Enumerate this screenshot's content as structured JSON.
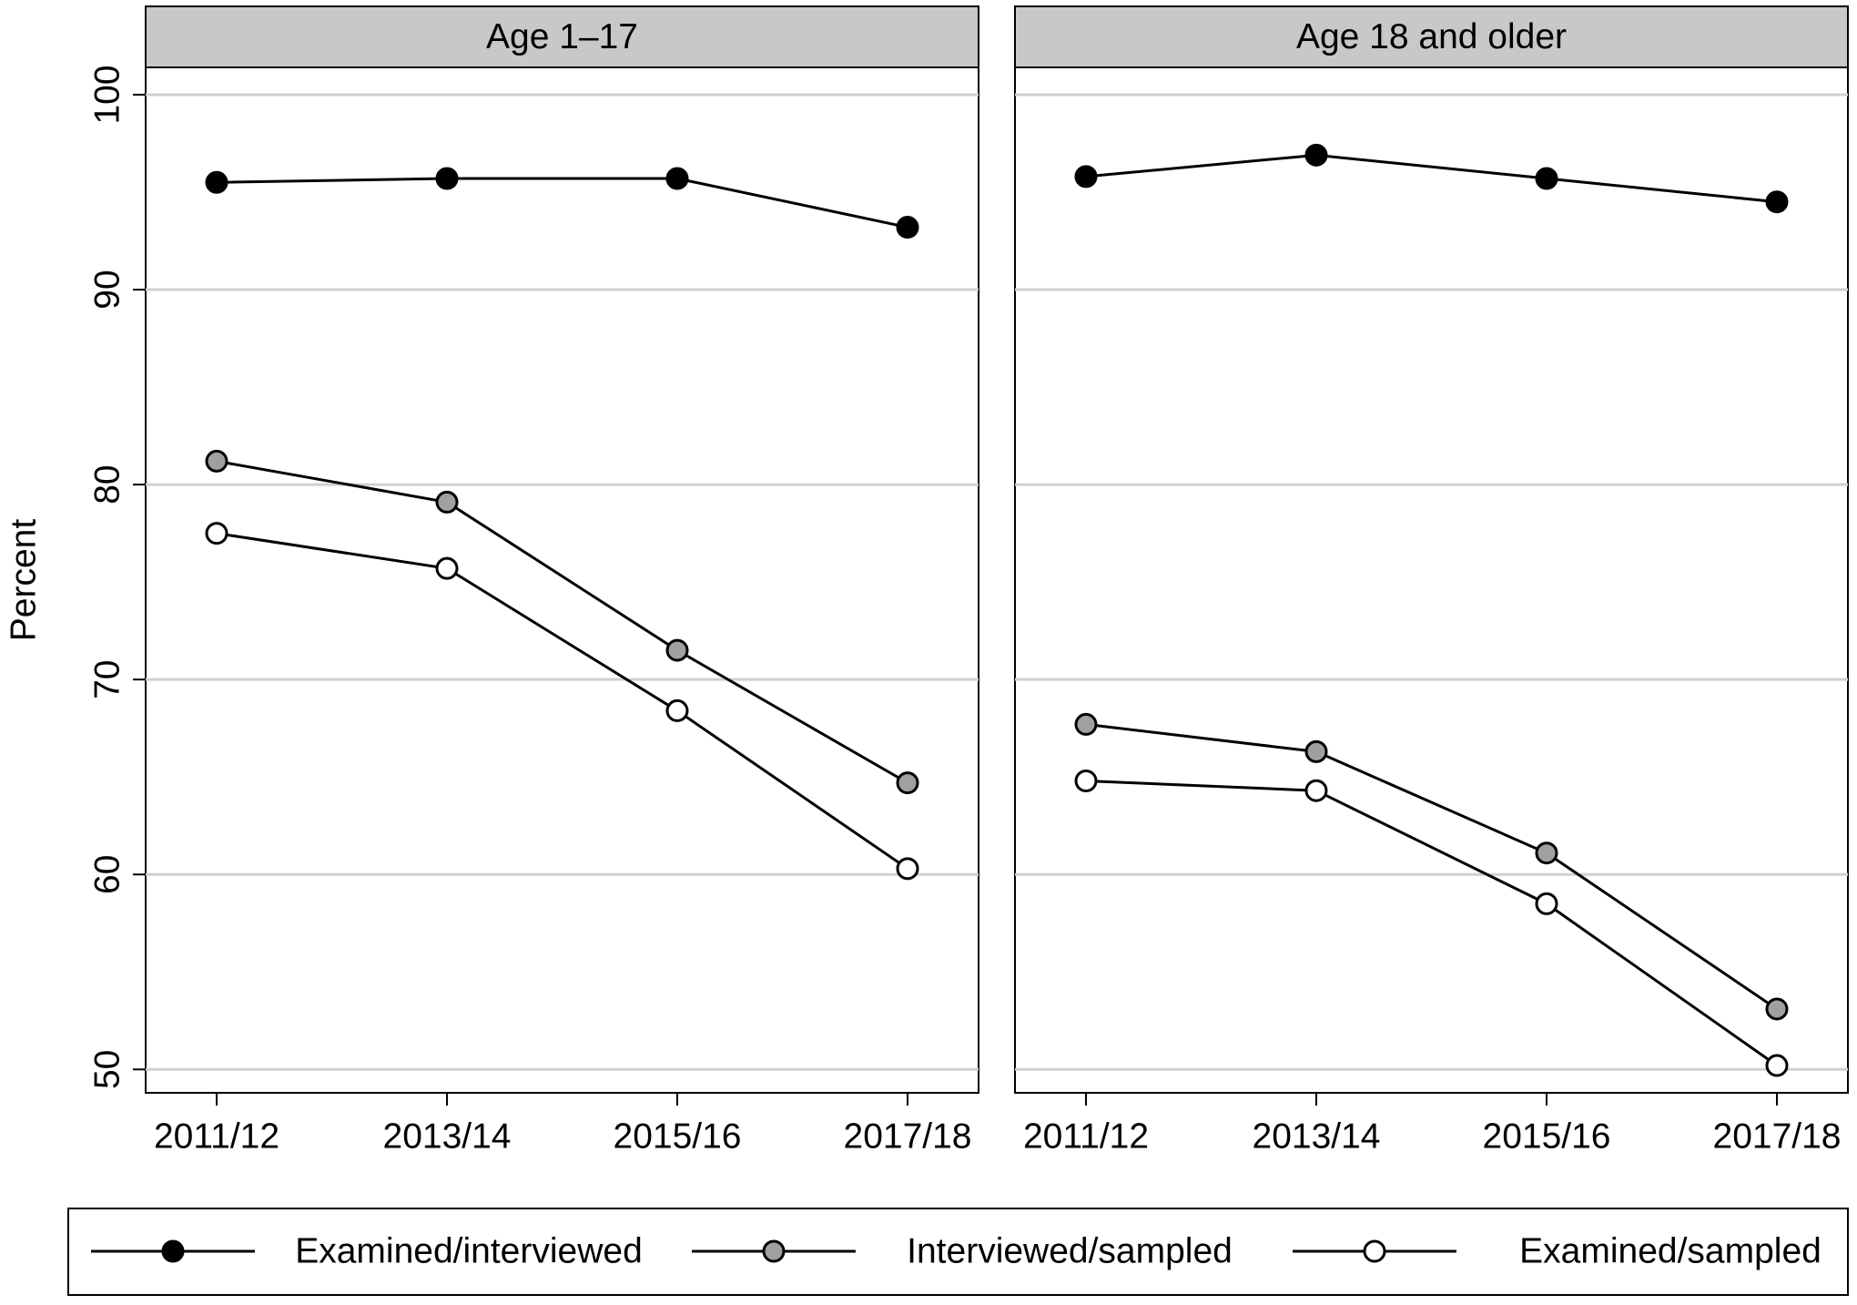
{
  "chart_data": [
    {
      "type": "line",
      "title": "Age 1–17",
      "y_label": "Percent",
      "categories": [
        "2011/12",
        "2013/14",
        "2015/16",
        "2017/18"
      ],
      "ylim": [
        48.8,
        101.4
      ],
      "yticks": [
        50,
        60,
        70,
        80,
        90,
        100
      ],
      "grid": true,
      "series": [
        {
          "name": "Examined/interviewed",
          "color": "#000000",
          "values": [
            95.5,
            95.7,
            95.7,
            93.2
          ]
        },
        {
          "name": "Interviewed/sampled",
          "color": "#a0a0a0",
          "values": [
            81.2,
            79.1,
            71.5,
            64.7
          ]
        },
        {
          "name": "Examined/sampled",
          "color": "#ffffff",
          "values": [
            77.5,
            75.7,
            68.4,
            60.3
          ]
        }
      ]
    },
    {
      "type": "line",
      "title": "Age 18 and older",
      "categories": [
        "2011/12",
        "2013/14",
        "2015/16",
        "2017/18"
      ],
      "ylim": [
        48.8,
        101.4
      ],
      "yticks": [
        50,
        60,
        70,
        80,
        90,
        100
      ],
      "grid": true,
      "series": [
        {
          "name": "Examined/interviewed",
          "color": "#000000",
          "values": [
            95.8,
            96.9,
            95.7,
            94.5
          ]
        },
        {
          "name": "Interviewed/sampled",
          "color": "#a0a0a0",
          "values": [
            67.7,
            66.3,
            61.1,
            53.1
          ]
        },
        {
          "name": "Examined/sampled",
          "color": "#ffffff",
          "values": [
            64.8,
            64.3,
            58.5,
            50.2
          ]
        }
      ]
    }
  ]
}
